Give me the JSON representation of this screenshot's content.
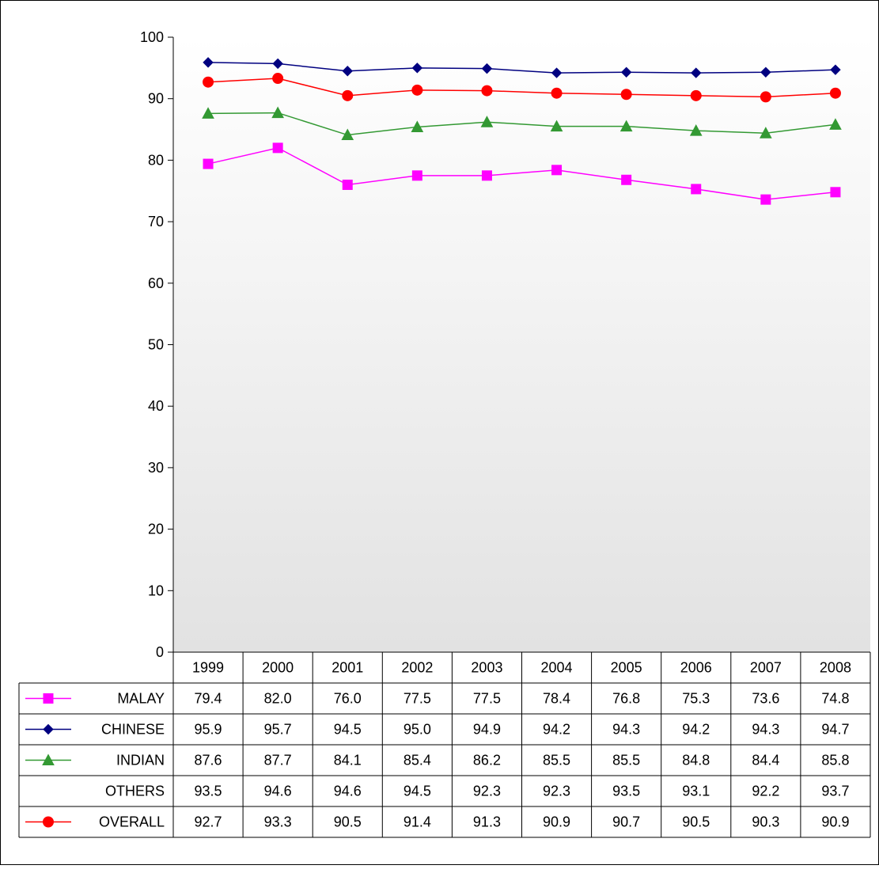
{
  "chart_data": {
    "type": "line",
    "title": "",
    "xlabel": "",
    "ylabel": "",
    "ylim": [
      0,
      100
    ],
    "yticks": [
      "0",
      "10",
      "20",
      "30",
      "40",
      "50",
      "60",
      "70",
      "80",
      "90",
      "100"
    ],
    "categories": [
      "1999",
      "2000",
      "2001",
      "2002",
      "2003",
      "2004",
      "2005",
      "2006",
      "2007",
      "2008"
    ],
    "grid": false,
    "legend": "data-table-below",
    "series": [
      {
        "name": "MALAY",
        "color": "#ff00ff",
        "marker": "square",
        "plotted": true,
        "values": [
          79.4,
          82.0,
          76.0,
          77.5,
          77.5,
          78.4,
          76.8,
          75.3,
          73.6,
          74.8
        ],
        "labels": [
          "79.4",
          "82.0",
          "76.0",
          "77.5",
          "77.5",
          "78.4",
          "76.8",
          "75.3",
          "73.6",
          "74.8"
        ]
      },
      {
        "name": "CHINESE",
        "color": "#000080",
        "marker": "diamond",
        "plotted": true,
        "values": [
          95.9,
          95.7,
          94.5,
          95.0,
          94.9,
          94.2,
          94.3,
          94.2,
          94.3,
          94.7
        ],
        "labels": [
          "95.9",
          "95.7",
          "94.5",
          "95.0",
          "94.9",
          "94.2",
          "94.3",
          "94.2",
          "94.3",
          "94.7"
        ]
      },
      {
        "name": "INDIAN",
        "color": "#339933",
        "marker": "triangle",
        "plotted": true,
        "values": [
          87.6,
          87.7,
          84.1,
          85.4,
          86.2,
          85.5,
          85.5,
          84.8,
          84.4,
          85.8
        ],
        "labels": [
          "87.6",
          "87.7",
          "84.1",
          "85.4",
          "86.2",
          "85.5",
          "85.5",
          "84.8",
          "84.4",
          "85.8"
        ]
      },
      {
        "name": "OTHERS",
        "color": "#ffffff",
        "marker": "none",
        "plotted": false,
        "values": [
          93.5,
          94.6,
          94.6,
          94.5,
          92.3,
          92.3,
          93.5,
          93.1,
          92.2,
          93.7
        ],
        "labels": [
          "93.5",
          "94.6",
          "94.6",
          "94.5",
          "92.3",
          "92.3",
          "93.5",
          "93.1",
          "92.2",
          "93.7"
        ]
      },
      {
        "name": "OVERALL",
        "color": "#ff0000",
        "marker": "circle",
        "plotted": true,
        "values": [
          92.7,
          93.3,
          90.5,
          91.4,
          91.3,
          90.9,
          90.7,
          90.5,
          90.3,
          90.9
        ],
        "labels": [
          "92.7",
          "93.3",
          "90.5",
          "91.4",
          "91.3",
          "90.9",
          "90.7",
          "90.5",
          "90.3",
          "90.9"
        ]
      }
    ]
  }
}
